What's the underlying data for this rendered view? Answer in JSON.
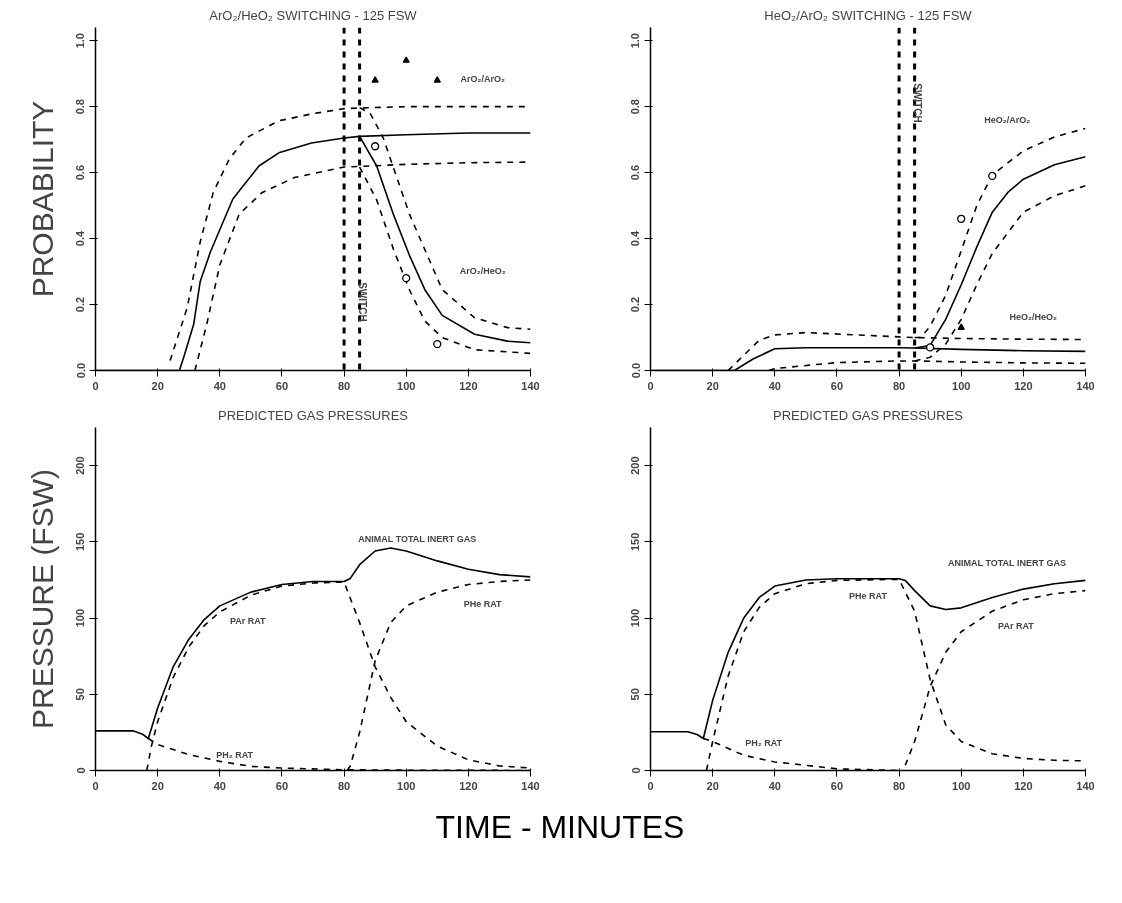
{
  "chart_data": [
    {
      "type": "line",
      "title": "ArO₂/HeO₂ SWITCHING - 125 FSW",
      "ylabel": "PROBABILITY",
      "xlim": [
        0,
        140
      ],
      "ylim": [
        0,
        1.04
      ],
      "xticks": [
        0,
        20,
        40,
        60,
        80,
        100,
        120,
        140
      ],
      "yticks": [
        {
          "value": 0,
          "label": "0.0"
        },
        {
          "value": 0.2,
          "label": "0.2"
        },
        {
          "value": 0.4,
          "label": "0.4"
        },
        {
          "value": 0.6,
          "label": "0.6"
        },
        {
          "value": 0.8,
          "label": "0.8"
        },
        {
          "value": 1,
          "label": "1.0"
        }
      ],
      "grid": false,
      "marker": "none",
      "series": [
        {
          "color": "#000000",
          "line_style": "solid",
          "x": [
            0,
            27,
            28.4,
            31.6,
            33.7,
            37,
            44.2,
            52.6,
            59,
            69.5,
            80,
            85,
            100,
            120,
            140
          ],
          "values": [
            0,
            0,
            0.04,
            0.14,
            0.27,
            0.36,
            0.52,
            0.62,
            0.66,
            0.69,
            0.705,
            0.71,
            0.715,
            0.72,
            0.72
          ]
        },
        {
          "color": "#000000",
          "line_style": "solid",
          "x": [
            85,
            90.5,
            95.8,
            101,
            106,
            111.6,
            122,
            132.6,
            140
          ],
          "values": [
            0.71,
            0.62,
            0.475,
            0.35,
            0.245,
            0.167,
            0.11,
            0.089,
            0.084
          ]
        },
        {
          "color": "#000000",
          "line_style": "dashed",
          "x": [
            24,
            29.5,
            33.7,
            37.9,
            43,
            48.4,
            59,
            69.5,
            80,
            88.4,
            100,
            120,
            140
          ],
          "values": [
            0.03,
            0.19,
            0.39,
            0.54,
            0.64,
            0.705,
            0.757,
            0.778,
            0.794,
            0.797,
            0.8,
            0.8,
            0.8
          ]
        },
        {
          "color": "#000000",
          "line_style": "dashed",
          "x": [
            85,
            88.4,
            92.6,
            101,
            111.6,
            122,
            132.6,
            140
          ],
          "values": [
            0.797,
            0.78,
            0.705,
            0.475,
            0.245,
            0.16,
            0.13,
            0.125
          ]
        },
        {
          "color": "#000000",
          "line_style": "dashed",
          "x": [
            32,
            35.8,
            40,
            46.3,
            53.7,
            64,
            80,
            100,
            120,
            140
          ],
          "values": [
            0,
            0.14,
            0.32,
            0.475,
            0.54,
            0.585,
            0.617,
            0.625,
            0.63,
            0.632
          ]
        },
        {
          "color": "#000000",
          "line_style": "dashed",
          "x": [
            85,
            90.5,
            95.8,
            101,
            106,
            111.6,
            122,
            140
          ],
          "values": [
            0.617,
            0.517,
            0.37,
            0.245,
            0.15,
            0.1,
            0.063,
            0.052
          ]
        },
        {
          "type": "scatter",
          "marker": "triangle",
          "color": "#000000",
          "x": [
            90,
            100,
            110
          ],
          "values": [
            0.88,
            0.94,
            0.88
          ]
        },
        {
          "type": "scatter",
          "marker": "circle",
          "color": "#000000",
          "x": [
            90,
            100,
            110
          ],
          "values": [
            0.68,
            0.28,
            0.08
          ]
        }
      ],
      "ref_lines": [
        {
          "axis": "x",
          "value": 80,
          "line_style": "dashed",
          "color": "#000000"
        },
        {
          "axis": "x",
          "value": 85,
          "line_style": "dashed",
          "color": "#000000",
          "label": "SWITCH"
        }
      ],
      "annotations": [
        "ArO₂/ArO₂",
        "ArO₂/HeO₂"
      ]
    },
    {
      "type": "line",
      "title": "HeO₂/ArO₂ SWITCHING - 125 FSW",
      "xlim": [
        0,
        140
      ],
      "ylim": [
        0,
        1.04
      ],
      "xticks": [
        0,
        20,
        40,
        60,
        80,
        100,
        120,
        140
      ],
      "yticks": [
        {
          "value": 0,
          "label": "0.0"
        },
        {
          "value": 0.2,
          "label": "0.2"
        },
        {
          "value": 0.4,
          "label": "0.4"
        },
        {
          "value": 0.6,
          "label": "0.6"
        },
        {
          "value": 0.8,
          "label": "0.8"
        },
        {
          "value": 1,
          "label": "1.0"
        }
      ],
      "grid": false,
      "marker": "none",
      "series": [
        {
          "color": "#000000",
          "line_style": "solid",
          "x": [
            0,
            27,
            33,
            40,
            50,
            80,
            85,
            100,
            120,
            140
          ],
          "values": [
            0,
            0,
            0.035,
            0.066,
            0.069,
            0.069,
            0.068,
            0.064,
            0.06,
            0.058
          ]
        },
        {
          "color": "#000000",
          "line_style": "solid",
          "x": [
            85,
            90,
            95,
            100,
            105,
            110,
            115,
            120,
            130,
            140
          ],
          "values": [
            0.068,
            0.076,
            0.155,
            0.26,
            0.374,
            0.48,
            0.54,
            0.58,
            0.624,
            0.648
          ]
        },
        {
          "color": "#000000",
          "line_style": "dashed",
          "x": [
            25,
            35,
            40,
            50,
            80,
            85,
            100,
            120,
            140
          ],
          "values": [
            0,
            0.092,
            0.108,
            0.115,
            0.102,
            0.1,
            0.097,
            0.095,
            0.094
          ]
        },
        {
          "color": "#000000",
          "line_style": "dashed",
          "x": [
            85,
            87,
            90,
            95,
            100,
            105,
            110,
            120,
            130,
            140
          ],
          "values": [
            0.1,
            0.1,
            0.134,
            0.228,
            0.363,
            0.5,
            0.593,
            0.666,
            0.708,
            0.734
          ]
        },
        {
          "color": "#000000",
          "line_style": "dashed",
          "x": [
            38,
            40,
            60,
            80,
            85,
            100,
            120,
            140
          ],
          "values": [
            0,
            0.006,
            0.024,
            0.029,
            0.029,
            0.026,
            0.023,
            0.022
          ]
        },
        {
          "color": "#000000",
          "line_style": "dashed",
          "x": [
            85,
            90,
            95,
            100,
            105,
            110,
            120,
            130,
            140
          ],
          "values": [
            0.029,
            0.04,
            0.08,
            0.155,
            0.26,
            0.355,
            0.48,
            0.53,
            0.56
          ]
        },
        {
          "type": "scatter",
          "marker": "triangle",
          "color": "#000000",
          "x": [
            100
          ],
          "values": [
            0.13
          ]
        },
        {
          "type": "scatter",
          "marker": "circle",
          "color": "#000000",
          "x": [
            90,
            100,
            110
          ],
          "values": [
            0.07,
            0.46,
            0.59
          ]
        }
      ],
      "ref_lines": [
        {
          "axis": "x",
          "value": 80,
          "line_style": "dashed",
          "color": "#000000"
        },
        {
          "axis": "x",
          "value": 85,
          "line_style": "dashed",
          "color": "#000000",
          "label": "SWITCH"
        }
      ],
      "annotations": [
        "HeO₂/ArO₂",
        "HeO₂/HeO₂"
      ]
    },
    {
      "type": "line",
      "title": "PREDICTED GAS PRESSURES",
      "ylabel": "PRESSURE (FSW)",
      "xlabel": "TIME - MINUTES",
      "xlim": [
        0,
        140
      ],
      "ylim": [
        0,
        225
      ],
      "xticks": [
        0,
        20,
        40,
        60,
        80,
        100,
        120,
        140
      ],
      "yticks": [
        0,
        50,
        100,
        150,
        200
      ],
      "grid": false,
      "marker": "none",
      "series": [
        {
          "color": "#000000",
          "line_style": "solid",
          "x": [
            0,
            12,
            15,
            17,
            20,
            25,
            30,
            35,
            40,
            50,
            60,
            70,
            80,
            82,
            85,
            90,
            95,
            100,
            110,
            120,
            130,
            140
          ],
          "values": [
            26,
            26,
            24,
            21,
            41,
            68,
            86,
            99,
            108,
            117,
            122,
            124,
            124,
            126,
            135,
            144,
            146,
            144,
            137.5,
            132,
            128.5,
            127
          ]
        },
        {
          "color": "#000000",
          "line_style": "dashed",
          "x": [
            16.5,
            18,
            20,
            25,
            30,
            35,
            40,
            50,
            60,
            70,
            80,
            85,
            90,
            95,
            100,
            110,
            120,
            130,
            140
          ],
          "values": [
            0,
            16,
            32,
            61,
            81,
            95,
            104,
            115,
            121,
            123,
            123.6,
            97,
            68,
            48,
            32,
            16,
            7,
            3,
            1.6
          ]
        },
        {
          "color": "#000000",
          "line_style": "dashed",
          "x": [
            81,
            82,
            85,
            90,
            95,
            100,
            110,
            120,
            130,
            140
          ],
          "values": [
            0,
            3,
            25,
            72,
            97,
            108,
            117,
            122,
            124,
            125
          ]
        },
        {
          "color": "#000000",
          "line_style": "dashed",
          "x": [
            17,
            20,
            30,
            40,
            50,
            60,
            80,
            100,
            140
          ],
          "values": [
            21,
            17,
            10.5,
            6,
            2.7,
            1.6,
            0.5,
            0.2,
            0
          ]
        }
      ],
      "annotations": [
        "ANIMAL TOTAL INERT GAS",
        "PAr RAT",
        "PHe RAT",
        "PH₂ RAT"
      ]
    },
    {
      "type": "line",
      "title": "PREDICTED GAS PRESSURES",
      "xlim": [
        0,
        140
      ],
      "ylim": [
        0,
        225
      ],
      "xticks": [
        0,
        20,
        40,
        60,
        80,
        100,
        120,
        140
      ],
      "yticks": [
        0,
        50,
        100,
        150,
        200
      ],
      "grid": false,
      "marker": "none",
      "series": [
        {
          "color": "#000000",
          "line_style": "solid",
          "x": [
            0,
            12,
            15,
            17,
            20,
            25,
            30,
            35,
            40,
            50,
            60,
            80,
            82,
            85,
            90,
            95,
            100,
            110,
            120,
            130,
            140
          ],
          "values": [
            25.4,
            25.4,
            23.6,
            21,
            46,
            77.5,
            100,
            113.5,
            121,
            125,
            125.8,
            125.8,
            124.7,
            118,
            108,
            105.6,
            106.7,
            113.5,
            119,
            122.5,
            124.7
          ]
        },
        {
          "color": "#000000",
          "line_style": "dashed",
          "x": [
            18,
            20,
            25,
            30,
            35,
            40,
            50,
            60,
            80,
            85,
            90,
            95,
            100,
            110,
            120,
            130,
            140
          ],
          "values": [
            0,
            19,
            62,
            91,
            107,
            116,
            122.5,
            124.7,
            125.4,
            104.5,
            59.6,
            30,
            19,
            11,
            7.9,
            6.7,
            6.3
          ]
        },
        {
          "color": "#000000",
          "line_style": "dashed",
          "x": [
            82,
            85,
            90,
            95,
            100,
            110,
            120,
            130,
            140
          ],
          "values": [
            3.4,
            19,
            55,
            77.5,
            91,
            104.5,
            112,
            116,
            118
          ]
        },
        {
          "color": "#000000",
          "line_style": "dashed",
          "x": [
            17,
            20,
            30,
            40,
            50,
            60,
            80
          ],
          "values": [
            21,
            19,
            10,
            5.6,
            3.4,
            1.1,
            0
          ]
        }
      ],
      "annotations": [
        "ANIMAL TOTAL INERT GAS",
        "PHe RAT",
        "PAr RAT",
        "PH₂ RAT"
      ]
    }
  ]
}
